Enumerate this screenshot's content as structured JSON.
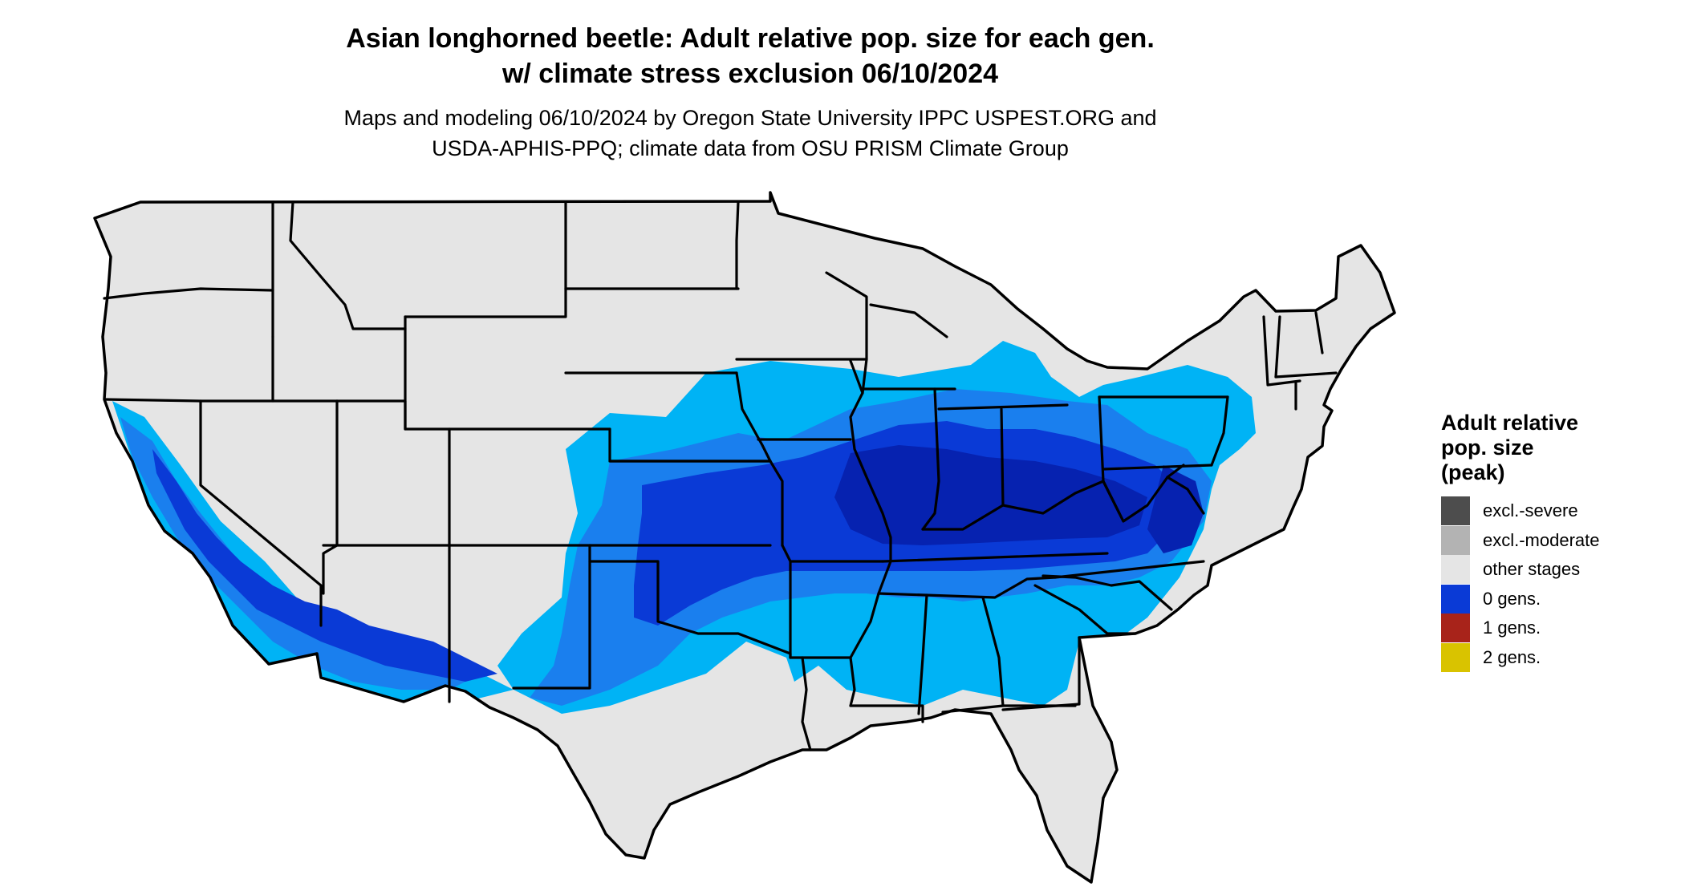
{
  "title": {
    "line1": "Asian longhorned beetle: Adult relative pop. size for each gen.",
    "line2": "w/ climate stress exclusion 06/10/2024"
  },
  "subtitle": {
    "line1": "Maps and modeling 06/10/2024 by Oregon State University IPPC USPEST.ORG and",
    "line2": "USDA-APHIS-PPQ; climate data from OSU PRISM Climate Group"
  },
  "legend": {
    "title_lines": [
      "Adult relative",
      "pop. size",
      "(peak)"
    ],
    "items": [
      {
        "label": "excl.-severe",
        "color": "#4d4d4d"
      },
      {
        "label": "excl.-moderate",
        "color": "#b3b3b3"
      },
      {
        "label": "other stages",
        "color": "#e5e5e5"
      },
      {
        "label": "0 gens.",
        "color": "#0a3ad6"
      },
      {
        "label": "1 gens.",
        "color": "#a8231a"
      },
      {
        "label": "2 gens.",
        "color": "#d9c300"
      }
    ]
  },
  "map": {
    "region": "contiguous-united-states",
    "land_color": "#e5e5e5",
    "shade_colors": {
      "light": "#00b3f5",
      "mid": "#1a7fee",
      "dark": "#0a3ad6",
      "darkest": "#0622b0"
    },
    "border_color": "#000000"
  }
}
